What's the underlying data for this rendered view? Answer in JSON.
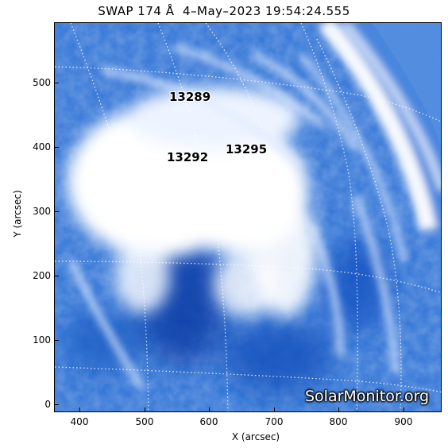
{
  "title": "SWAP 174 Å  4–May–2023 19:54:24.555",
  "axes": {
    "x_label": "X (arcsec)",
    "y_label": "Y (arcsec)",
    "x_ticks": [
      "400",
      "500",
      "600",
      "700",
      "800",
      "900"
    ],
    "y_ticks": [
      "0",
      "100",
      "200",
      "300",
      "400",
      "500"
    ],
    "x_range": [
      365,
      960
    ],
    "y_range": [
      -10,
      590
    ]
  },
  "regions": [
    "13289",
    "13295",
    "13292"
  ],
  "watermark": "SolarMonitor.org",
  "colors": {
    "background": "#2f6fd4",
    "bright": "#ffffff",
    "dark": "#0d47b3",
    "grid": "#ffffff"
  }
}
